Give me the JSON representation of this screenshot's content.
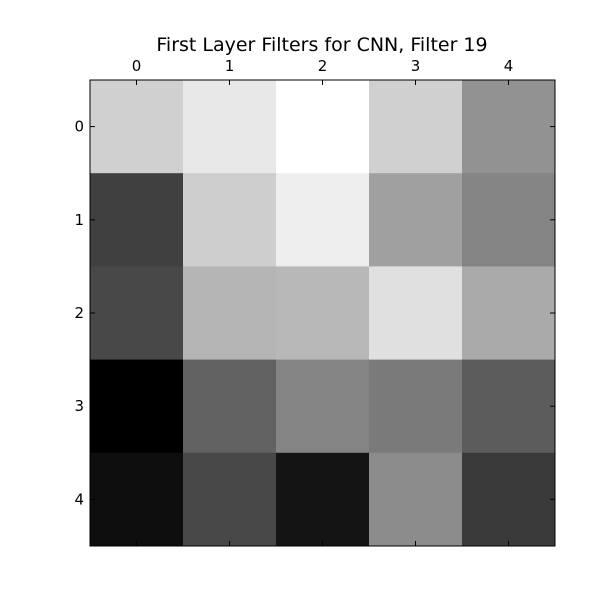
{
  "chart_data": {
    "type": "heatmap",
    "title": "First Layer Filters for CNN, Filter 19",
    "x_ticks": [
      "0",
      "1",
      "2",
      "3",
      "4"
    ],
    "y_ticks": [
      "0",
      "1",
      "2",
      "3",
      "4"
    ],
    "colormap": "gray",
    "value_range": [
      0,
      255
    ],
    "values": [
      [
        208,
        232,
        255,
        208,
        146
      ],
      [
        64,
        206,
        238,
        160,
        132
      ],
      [
        72,
        181,
        184,
        224,
        170
      ],
      [
        0,
        98,
        132,
        122,
        92
      ],
      [
        14,
        72,
        20,
        140,
        58
      ]
    ],
    "grid": false,
    "x_axis_position": "top"
  }
}
